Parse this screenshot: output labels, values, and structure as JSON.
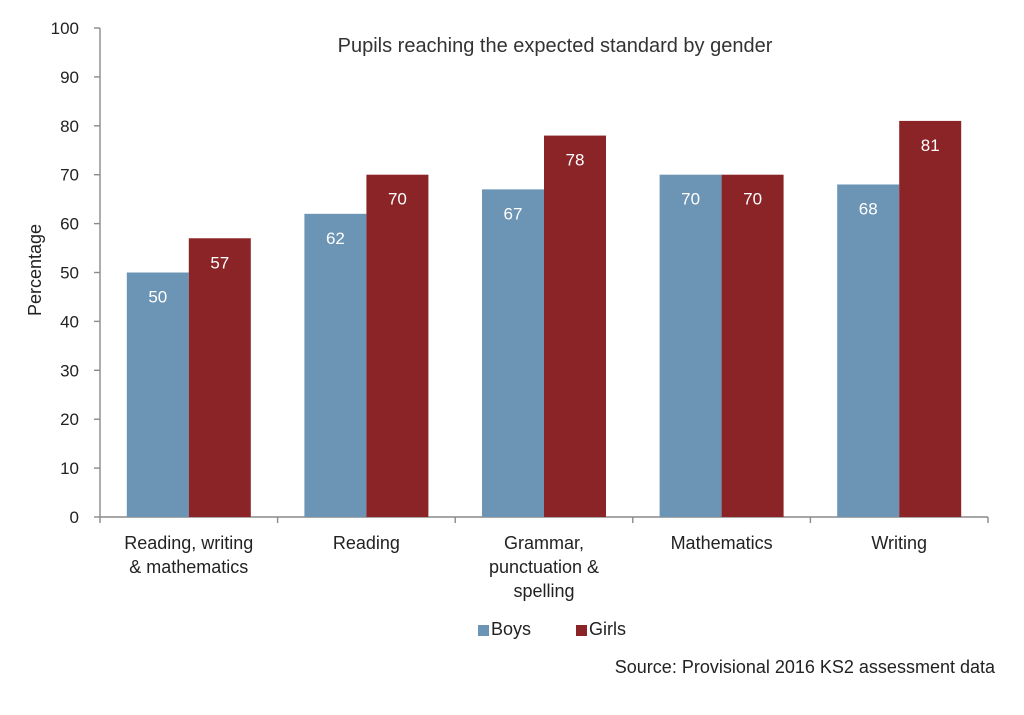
{
  "chart_data": {
    "type": "bar",
    "title": "Pupils reaching the expected standard by gender",
    "xlabel": "",
    "ylabel": "Percentage",
    "categories": [
      [
        "Reading, writing",
        "& mathematics"
      ],
      [
        "Reading"
      ],
      [
        "Grammar,",
        "punctuation &",
        "spelling"
      ],
      [
        "Mathematics"
      ],
      [
        "Writing"
      ]
    ],
    "series": [
      {
        "name": "Boys",
        "values": [
          50,
          62,
          67,
          70,
          68
        ],
        "color": "#6c94b4"
      },
      {
        "name": "Girls",
        "values": [
          57,
          70,
          78,
          70,
          81
        ],
        "color": "#8b2427"
      }
    ],
    "ylim": [
      0,
      100
    ],
    "yticks": [
      0,
      10,
      20,
      30,
      40,
      50,
      60,
      70,
      80,
      90,
      100
    ],
    "grid": false,
    "legend_position": "bottom",
    "source": "Source:  Provisional  2016  KS2  assessment  data"
  }
}
